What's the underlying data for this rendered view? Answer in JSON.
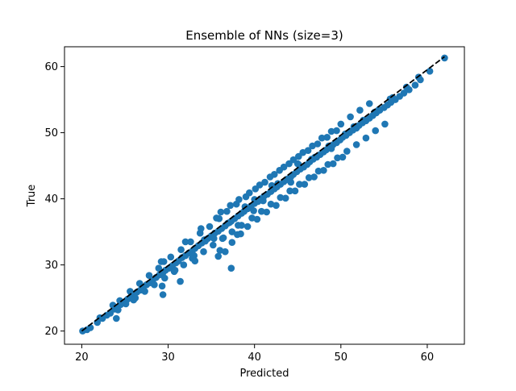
{
  "chart_data": {
    "type": "scatter",
    "title": "Ensemble of NNs (size=3)",
    "xlabel": "Predicted",
    "ylabel": "True",
    "xlim": [
      18.0,
      64.3
    ],
    "ylim": [
      18.0,
      63.0
    ],
    "xticks": [
      20,
      30,
      40,
      50,
      60
    ],
    "yticks": [
      20,
      30,
      40,
      50,
      60
    ],
    "grid": false,
    "marker_color": "#1f77b4",
    "reference_line": {
      "style": "dashed",
      "color": "#000000",
      "x": [
        20.0,
        62.0
      ],
      "y": [
        20.0,
        61.5
      ]
    },
    "points": {
      "x": [
        20.1,
        20.6,
        21.0,
        21.8,
        22.4,
        22.9,
        23.3,
        23.8,
        24.1,
        24.5,
        24.9,
        25.3,
        25.7,
        26.0,
        26.4,
        26.8,
        27.1,
        27.5,
        27.9,
        28.2,
        28.6,
        29.0,
        29.4,
        29.7,
        30.1,
        30.5,
        30.9,
        31.2,
        31.6,
        32.0,
        32.4,
        32.8,
        33.1,
        33.5,
        33.9,
        34.3,
        34.6,
        35.0,
        35.4,
        35.8,
        36.2,
        36.6,
        36.9,
        37.3,
        37.7,
        38.1,
        38.5,
        38.8,
        39.2,
        39.6,
        40.0,
        40.4,
        40.7,
        41.1,
        41.5,
        41.9,
        42.3,
        42.6,
        43.0,
        43.4,
        43.8,
        44.2,
        44.5,
        44.9,
        45.3,
        45.7,
        46.1,
        46.4,
        46.8,
        47.2,
        47.6,
        48.0,
        48.3,
        48.7,
        49.1,
        49.5,
        49.9,
        50.2,
        50.6,
        51.0,
        51.4,
        51.8,
        52.1,
        52.5,
        52.9,
        53.3,
        53.7,
        54.1,
        54.5,
        55.0,
        55.4,
        55.8,
        56.3,
        56.8,
        57.3,
        57.9,
        58.6,
        59.2,
        62.0,
        23.6,
        24.4,
        25.6,
        26.7,
        27.8,
        28.9,
        29.5,
        30.3,
        31.5,
        32.6,
        33.7,
        34.8,
        35.9,
        36.8,
        37.9,
        39.0,
        40.1,
        41.2,
        42.3,
        43.4,
        44.5,
        45.6,
        46.7,
        47.8,
        48.9,
        50.0,
        51.1,
        52.2,
        53.3,
        24.2,
        25.1,
        26.2,
        27.3,
        28.4,
        29.6,
        30.7,
        31.8,
        32.9,
        34.1,
        35.2,
        36.3,
        37.4,
        38.5,
        39.7,
        40.8,
        41.9,
        43.0,
        44.1,
        45.2,
        46.3,
        47.4,
        48.5,
        49.6,
        50.7,
        51.8,
        52.9,
        54.0,
        55.1,
        29.2,
        32.0,
        33.8,
        35.6,
        36.1,
        37.2,
        38.2,
        39.4,
        40.6,
        41.8,
        42.9,
        44.0,
        45.1,
        46.2,
        47.3,
        48.4,
        49.5,
        36.0,
        37.4,
        38.0,
        39.2,
        40.3,
        41.4,
        42.5,
        43.6,
        44.7,
        45.8,
        46.9,
        48.0,
        49.1,
        50.2,
        24.0,
        29.4,
        33.0,
        35.3,
        37.1,
        38.1,
        36.4,
        38.9,
        40.0,
        42.0,
        44.2,
        45.0,
        46.6,
        48.6,
        50.5,
        52.6,
        54.4,
        56.0,
        57.6,
        59.0,
        60.3,
        37.3,
        35.8,
        38.4,
        45.1,
        32.8,
        36.6,
        29.3,
        26.0,
        31.4,
        22.1,
        33.1,
        27.1,
        30.8,
        34.2,
        42.7,
        47.0,
        43.9,
        39.9,
        41.0,
        48.9,
        51.5,
        53.9,
        55.7
      ],
      "y": [
        20.0,
        20.2,
        20.5,
        21.3,
        21.9,
        22.4,
        22.7,
        23.3,
        23.6,
        24.0,
        24.3,
        24.8,
        25.2,
        25.5,
        25.9,
        26.2,
        26.6,
        27.0,
        27.3,
        27.6,
        28.1,
        28.5,
        28.8,
        29.2,
        29.5,
        29.9,
        30.3,
        30.6,
        31.1,
        31.4,
        31.8,
        32.1,
        32.5,
        32.9,
        33.3,
        33.6,
        34.0,
        34.4,
        34.8,
        35.1,
        35.5,
        35.9,
        36.3,
        36.6,
        37.0,
        37.4,
        37.8,
        38.1,
        38.5,
        38.9,
        39.3,
        39.6,
        40.0,
        40.4,
        40.7,
        41.1,
        41.5,
        41.8,
        42.2,
        42.6,
        43.0,
        43.3,
        43.7,
        44.1,
        44.5,
        44.8,
        45.2,
        45.6,
        46.0,
        46.3,
        46.7,
        47.1,
        47.4,
        47.8,
        48.2,
        48.5,
        48.9,
        49.3,
        49.6,
        50.0,
        50.4,
        50.7,
        51.1,
        51.5,
        51.8,
        52.2,
        52.6,
        53.0,
        53.4,
        53.8,
        54.2,
        54.6,
        55.0,
        55.5,
        56.0,
        56.5,
        57.2,
        58.0,
        61.3,
        23.9,
        24.6,
        26.0,
        27.2,
        28.4,
        29.5,
        30.5,
        31.2,
        32.3,
        33.5,
        34.8,
        35.8,
        37.0,
        38.1,
        39.2,
        40.3,
        41.5,
        42.5,
        43.7,
        44.8,
        45.9,
        47.0,
        48.0,
        49.2,
        50.2,
        51.3,
        52.4,
        53.4,
        54.4,
        23.2,
        24.1,
        25.0,
        26.0,
        27.0,
        28.0,
        29.0,
        30.0,
        31.0,
        32.0,
        33.0,
        34.0,
        35.0,
        36.0,
        37.1,
        38.1,
        39.2,
        40.2,
        41.2,
        42.2,
        43.2,
        44.2,
        45.2,
        46.2,
        47.2,
        48.2,
        49.2,
        50.3,
        51.3,
        30.5,
        33.5,
        35.5,
        37.1,
        38.0,
        39.0,
        39.9,
        40.9,
        42.1,
        43.3,
        44.3,
        45.3,
        46.4,
        47.3,
        48.3,
        49.3,
        50.3,
        32.2,
        33.4,
        34.6,
        35.8,
        36.9,
        38.0,
        39.0,
        40.1,
        41.2,
        42.2,
        43.3,
        44.3,
        45.3,
        46.3,
        21.9,
        25.5,
        31.4,
        34.0,
        36.4,
        36.0,
        34.1,
        38.8,
        39.9,
        42.0,
        42.5,
        45.3,
        46.0,
        48.0,
        49.8,
        51.9,
        53.5,
        55.3,
        56.9,
        58.4,
        59.3,
        29.5,
        31.3,
        34.7,
        45.2,
        31.0,
        32.0,
        26.8,
        24.7,
        27.5,
        22.0,
        30.6,
        26.5,
        29.2,
        33.8,
        42.3,
        46.3,
        42.9,
        38.2,
        39.7,
        47.6,
        50.9,
        53.1,
        55.1
      ]
    }
  }
}
